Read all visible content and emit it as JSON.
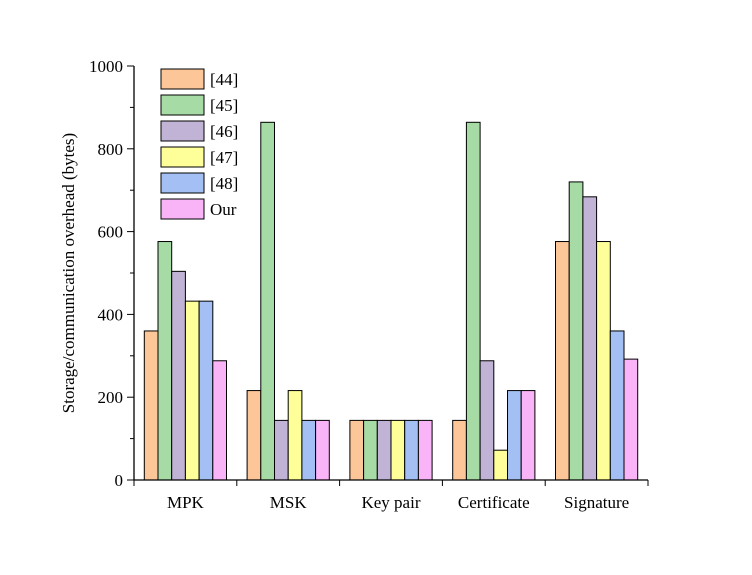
{
  "chart_data": {
    "type": "bar",
    "categories": [
      "MPK",
      "MSK",
      "Key pair",
      "Certificate",
      "Signature"
    ],
    "series": [
      {
        "name": "[44]",
        "color": "#fdc698",
        "values": [
          360,
          216,
          144,
          144,
          576
        ]
      },
      {
        "name": "[45]",
        "color": "#a7dba6",
        "values": [
          576,
          864,
          144,
          864,
          720
        ]
      },
      {
        "name": "[46]",
        "color": "#c1b3d6",
        "values": [
          504,
          144,
          144,
          288,
          684
        ]
      },
      {
        "name": "[47]",
        "color": "#ffff99",
        "values": [
          432,
          216,
          144,
          72,
          576
        ]
      },
      {
        "name": "[48]",
        "color": "#a3bff4",
        "values": [
          432,
          144,
          144,
          216,
          360
        ]
      },
      {
        "name": "Our",
        "color": "#f9b4f7",
        "values": [
          288,
          144,
          144,
          216,
          292
        ]
      }
    ],
    "xlabel": "",
    "ylabel": "Storage/communication overhead (bytes)",
    "ylim": [
      0,
      1000
    ],
    "yticks": [
      "0",
      "200",
      "400",
      "600",
      "800",
      "1000"
    ],
    "legend": "top-left",
    "grid": false
  }
}
